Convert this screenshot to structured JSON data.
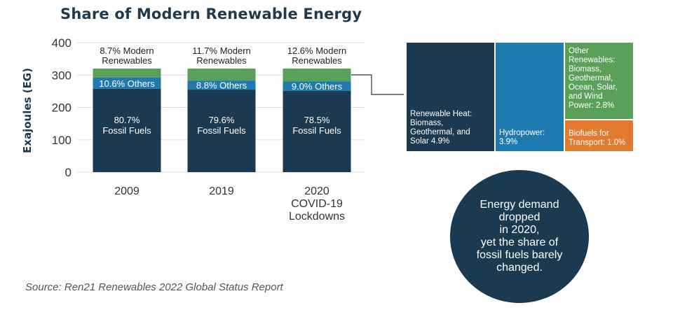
{
  "chart_data": [
    {
      "type": "bar",
      "stacked": true,
      "title": "Share of Modern Renewable Energy",
      "xlabel": "",
      "ylabel": "Exajoules (EG)",
      "ylim": [
        0,
        400
      ],
      "yticks": [
        0,
        100,
        200,
        300,
        400
      ],
      "grid": true,
      "categories": [
        "2009",
        "2019",
        "2020 COVID-19 Lockdowns"
      ],
      "category_lines": [
        [
          "2009"
        ],
        [
          "2019"
        ],
        [
          "2020",
          "COVID-19",
          "Lockdowns"
        ]
      ],
      "series": [
        {
          "name": "Fossil Fuels",
          "color": "#1b3a52",
          "values": [
            258,
            255,
            251
          ],
          "labels": [
            [
              "80.7%",
              "Fossil Fuels"
            ],
            [
              "79.6%",
              "Fossil Fuels"
            ],
            [
              "78.5%",
              "Fossil Fuels"
            ]
          ]
        },
        {
          "name": "Others",
          "color": "#1f7ab0",
          "values": [
            34,
            28,
            29
          ],
          "labels": [
            [
              "10.6% Others"
            ],
            [
              "8.8% Others"
            ],
            [
              "9.0% Others"
            ]
          ]
        },
        {
          "name": "Modern Renewables",
          "color": "#5aa059",
          "values": [
            28,
            37,
            40
          ],
          "labels": [
            [
              "8.7% Modern",
              "Renewables"
            ],
            [
              "11.7% Modern",
              "Renewables"
            ],
            [
              "12.6% Modern",
              "Renewables"
            ]
          ]
        }
      ]
    },
    {
      "type": "treemap",
      "title": "",
      "items": [
        {
          "name": "Renewable Heat",
          "value": 4.9,
          "color": "#1b3a52",
          "label_lines": [
            "Renewable Heat:",
            "Biomass,",
            "Geothermal, and",
            "Solar 4.9%"
          ]
        },
        {
          "name": "Hydropower",
          "value": 3.9,
          "color": "#1f7ab0",
          "label_lines": [
            "Hydropower:",
            "3.9%"
          ]
        },
        {
          "name": "Other Renewables",
          "value": 2.8,
          "color": "#5aa059",
          "label_lines": [
            "Other",
            "Renewables:",
            "Biomass,",
            "Geothermal,",
            "Ocean, Solar,",
            "and Wind",
            "Power: 2.8%"
          ]
        },
        {
          "name": "Biofuels for Transport",
          "value": 1.0,
          "color": "#e07b30",
          "label_lines": [
            "Biofuels for",
            "Transport: 1.0%"
          ]
        }
      ]
    }
  ],
  "callout": "Energy demand\ndropped\nin 2020,\nyet the share of\nfossil fuels barely\nchanged.",
  "source": "Source: Ren21 Renewables 2022 Global Status Report"
}
